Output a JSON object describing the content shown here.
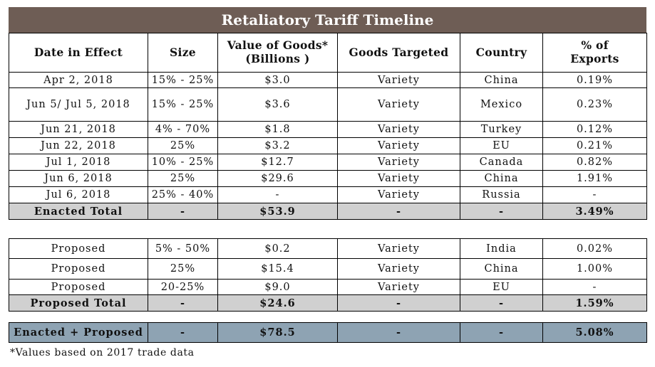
{
  "title": "Retaliatory Tariff Timeline",
  "headers": {
    "date": "Date in Effect",
    "size": "Size",
    "value_line1": "Value of Goods*",
    "value_line2": "(Billions )",
    "goods": "Goods Targeted",
    "country": "Country",
    "pct_line1": "% of",
    "pct_line2": "Exports"
  },
  "enacted_rows": [
    {
      "date": "Apr 2, 2018",
      "size": "15% - 25%",
      "value": "$3.0",
      "goods": "Variety",
      "country": "China",
      "pct": "0.19%"
    },
    {
      "date": "Jun 5/ Jul 5, 2018",
      "size": "15% - 25%",
      "value": "$3.6",
      "goods": "Variety",
      "country": "Mexico",
      "pct": "0.23%"
    },
    {
      "date": "Jun 21, 2018",
      "size": "4% - 70%",
      "value": "$1.8",
      "goods": "Variety",
      "country": "Turkey",
      "pct": "0.12%"
    },
    {
      "date": "Jun 22, 2018",
      "size": "25%",
      "value": "$3.2",
      "goods": "Variety",
      "country": "EU",
      "pct": "0.21%"
    },
    {
      "date": "Jul 1, 2018",
      "size": "10% - 25%",
      "value": "$12.7",
      "goods": "Variety",
      "country": "Canada",
      "pct": "0.82%"
    },
    {
      "date": "Jun 6, 2018",
      "size": "25%",
      "value": "$29.6",
      "goods": "Variety",
      "country": "China",
      "pct": "1.91%"
    },
    {
      "date": "Jul 6, 2018",
      "size": "25% - 40%",
      "value": "-",
      "goods": "Variety",
      "country": "Russia",
      "pct": "-"
    }
  ],
  "enacted_total": {
    "label": "Enacted Total",
    "size": "-",
    "value": "$53.9",
    "goods": "-",
    "country": "-",
    "pct": "3.49%"
  },
  "proposed_rows": [
    {
      "date": "Proposed",
      "size": "5% - 50%",
      "value": "$0.2",
      "goods": "Variety",
      "country": "India",
      "pct": "0.02%"
    },
    {
      "date": "Proposed",
      "size": "25%",
      "value": "$15.4",
      "goods": "Variety",
      "country": "China",
      "pct": "1.00%"
    },
    {
      "date": "Proposed",
      "size": "20-25%",
      "value": "$9.0",
      "goods": "Variety",
      "country": "EU",
      "pct": "-"
    }
  ],
  "proposed_total": {
    "label": "Proposed Total",
    "size": "-",
    "value": "$24.6",
    "goods": "-",
    "country": "-",
    "pct": "1.59%"
  },
  "grand_total": {
    "label": "Enacted + Proposed",
    "size": "-",
    "value": "$78.5",
    "goods": "-",
    "country": "-",
    "pct": "5.08%"
  },
  "footnote": "*Values based on 2017 trade data",
  "colors": {
    "title_bg": "#6e5d55",
    "total_bg": "#d0d0d0",
    "grand_bg": "#8ea3b3"
  }
}
